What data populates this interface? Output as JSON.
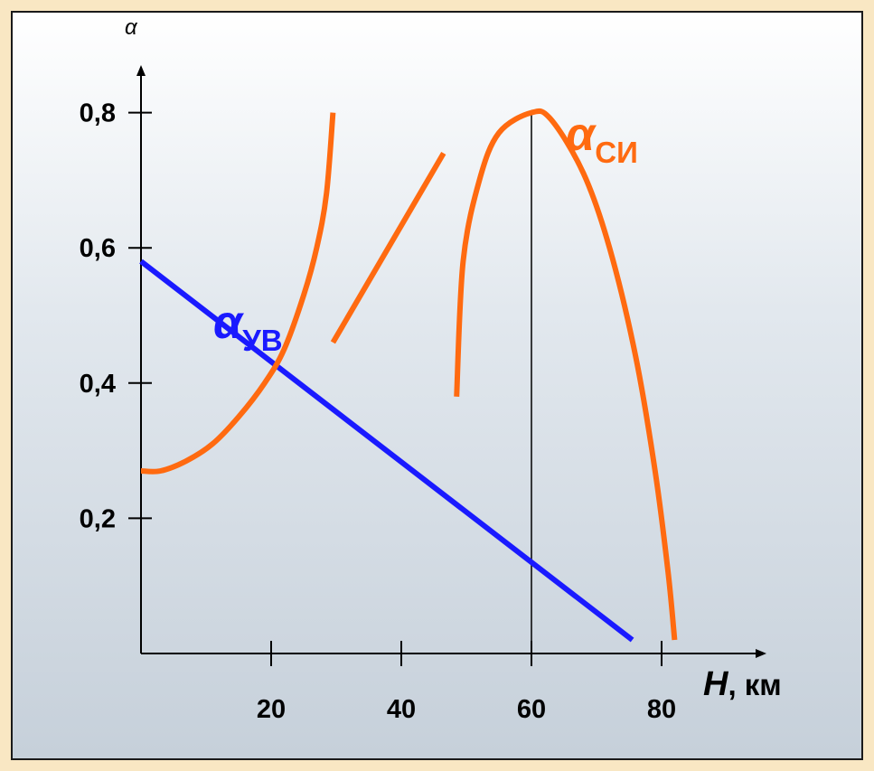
{
  "chart_data": {
    "type": "line",
    "title": "",
    "xlabel": "H",
    "xlabel_unit": ", км",
    "ylabel": "α",
    "xlim": [
      0,
      85
    ],
    "ylim": [
      0,
      0.9
    ],
    "x_ticks": [
      20,
      40,
      60,
      80
    ],
    "x_tick_labels": [
      "20",
      "40",
      "60",
      "80"
    ],
    "y_ticks": [
      0.2,
      0.4,
      0.6,
      0.8
    ],
    "y_tick_labels": [
      "0,2",
      "0,4",
      "0,6",
      "0,8"
    ],
    "grid": false,
    "reference_line_x": 60,
    "series": [
      {
        "name": "α",
        "name_sub": "УВ",
        "color": "#1a1aff",
        "points": [
          [
            0,
            0.58
          ],
          [
            75.5,
            0.02
          ]
        ]
      },
      {
        "name": "α",
        "name_sub": "СИ",
        "color": "#ff6a10",
        "segments": [
          [
            [
              0,
              0.27
            ],
            [
              3,
              0.27
            ],
            [
              7,
              0.285
            ],
            [
              11,
              0.31
            ],
            [
              15,
              0.35
            ],
            [
              19,
              0.4
            ],
            [
              22,
              0.45
            ],
            [
              25,
              0.53
            ],
            [
              27,
              0.6
            ],
            [
              28.5,
              0.68
            ],
            [
              29.5,
              0.8
            ]
          ],
          [
            [
              29.5,
              0.46
            ],
            [
              46.5,
              0.74
            ]
          ],
          [
            [
              48.5,
              0.38
            ],
            [
              49.5,
              0.58
            ],
            [
              52,
              0.7
            ],
            [
              55,
              0.77
            ],
            [
              60,
              0.8
            ],
            [
              63,
              0.79
            ],
            [
              68,
              0.71
            ],
            [
              72,
              0.6
            ],
            [
              76,
              0.44
            ],
            [
              79,
              0.27
            ],
            [
              81,
              0.12
            ],
            [
              82,
              0.02
            ]
          ]
        ]
      }
    ]
  }
}
